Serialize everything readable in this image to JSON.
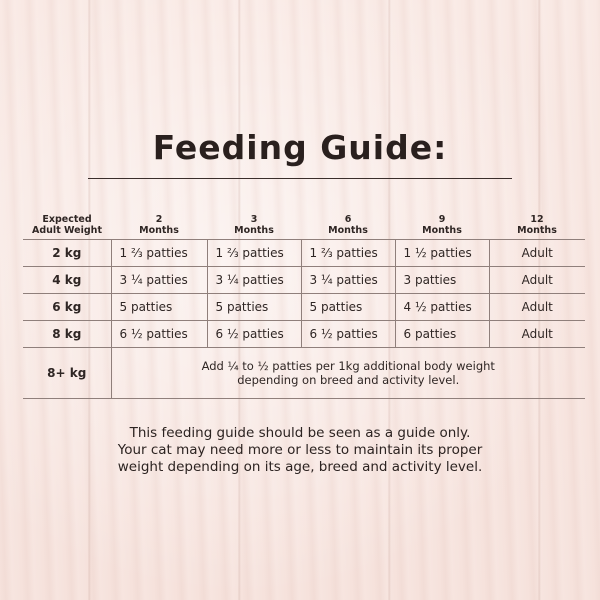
{
  "title": "Feeding Guide:",
  "table": {
    "headers": [
      [
        "Expected",
        "Adult Weight"
      ],
      [
        "2",
        "Months"
      ],
      [
        "3",
        "Months"
      ],
      [
        "6",
        "Months"
      ],
      [
        "9",
        "Months"
      ],
      [
        "12",
        "Months"
      ]
    ],
    "rows": [
      {
        "weight": "2 kg",
        "values": [
          "1 ⅔ patties",
          "1 ⅔ patties",
          "1 ⅔ patties",
          "1 ½ patties",
          "Adult"
        ]
      },
      {
        "weight": "4 kg",
        "values": [
          "3 ¼ patties",
          "3 ¼ patties",
          "3 ¼ patties",
          "3 patties",
          "Adult"
        ]
      },
      {
        "weight": "6 kg",
        "values": [
          "5 patties",
          "5 patties",
          "5 patties",
          "4 ½ patties",
          "Adult"
        ]
      },
      {
        "weight": "8 kg",
        "values": [
          "6 ½ patties",
          "6 ½ patties",
          "6 ½ patties",
          "6 patties",
          "Adult"
        ]
      }
    ],
    "last_row": {
      "weight": "8+ kg",
      "note_line1": "Add ¼ to ½ patties per 1kg additional body weight",
      "note_line2": "depending on breed and activity level."
    }
  },
  "disclaimer": {
    "line1": "This feeding guide should be seen as a guide only.",
    "line2": "Your cat may need more or less to maintain its proper",
    "line3": "weight depending on its age, breed and activity level."
  },
  "colors": {
    "background": "#f8e6e1",
    "text": "#2b2220",
    "rule": "#8f7f7b"
  }
}
